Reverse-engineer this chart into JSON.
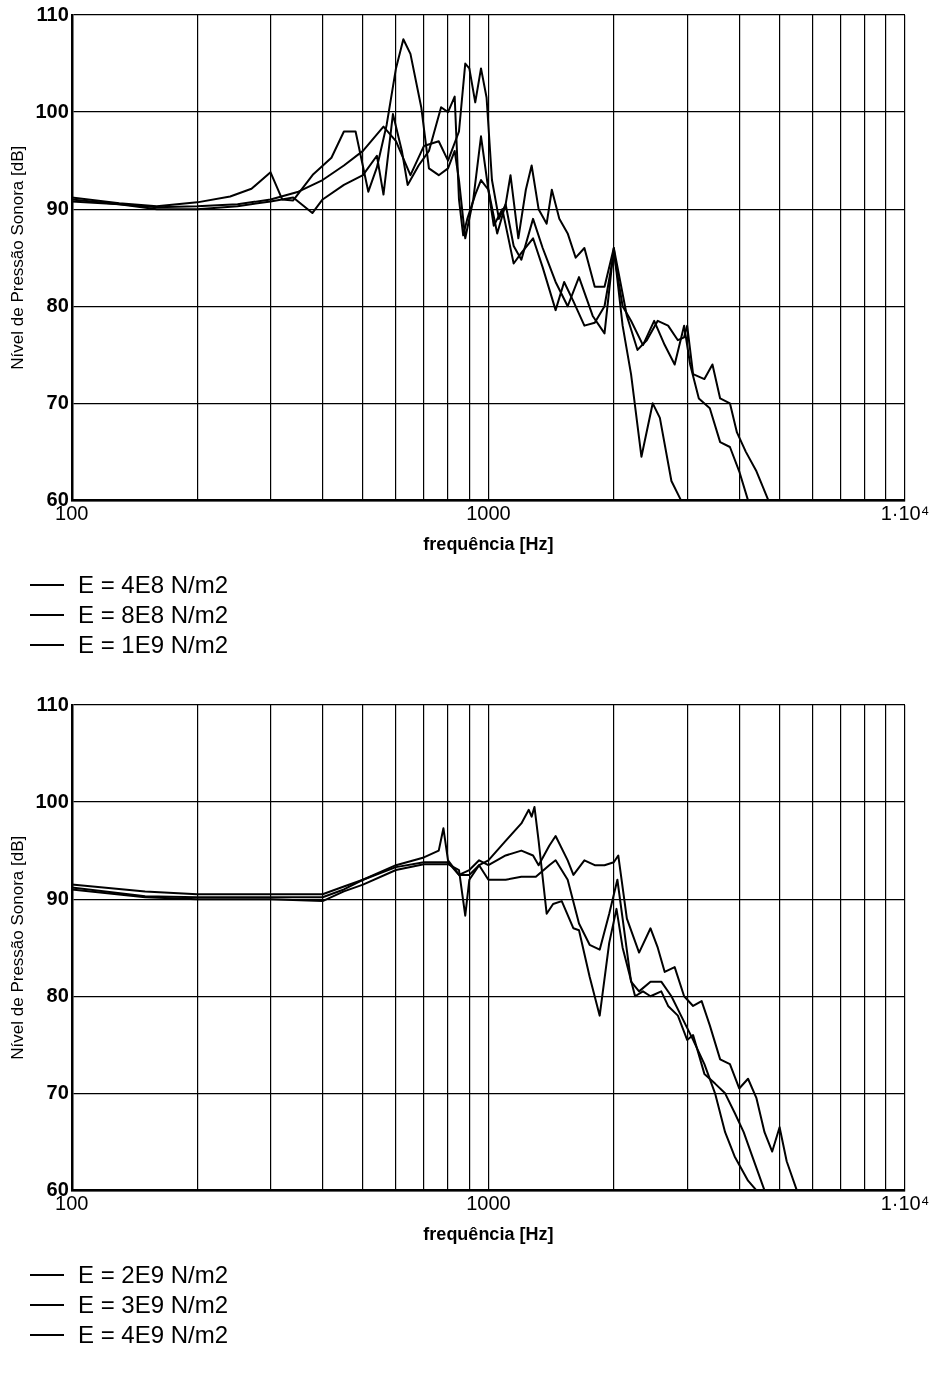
{
  "chart_data": [
    {
      "type": "line",
      "xlabel": "frequência [Hz]",
      "ylabel": "Nível de Pressão Sonora [dB]",
      "log": "x",
      "grid": true,
      "legend": "bottom left",
      "marker": "none",
      "line_style": "solid",
      "xlim": [
        100,
        10000
      ],
      "xticks": [
        {
          "value": 100,
          "label": "100"
        },
        {
          "value": 200,
          "label": null
        },
        {
          "value": 300,
          "label": null
        },
        {
          "value": 400,
          "label": null
        },
        {
          "value": 500,
          "label": null
        },
        {
          "value": 600,
          "label": null
        },
        {
          "value": 700,
          "label": null
        },
        {
          "value": 800,
          "label": null
        },
        {
          "value": 900,
          "label": null
        },
        {
          "value": 1000,
          "label": "1000"
        },
        {
          "value": 2000,
          "label": null
        },
        {
          "value": 3000,
          "label": null
        },
        {
          "value": 4000,
          "label": null
        },
        {
          "value": 5000,
          "label": null
        },
        {
          "value": 6000,
          "label": null
        },
        {
          "value": 7000,
          "label": null
        },
        {
          "value": 8000,
          "label": null
        },
        {
          "value": 9000,
          "label": null
        },
        {
          "value": 10000,
          "label": "1·10⁴"
        }
      ],
      "ylim": [
        60,
        110
      ],
      "yticks": [
        60,
        70,
        80,
        90,
        100,
        110
      ],
      "series": [
        {
          "name": "E = 4E8 N/m2",
          "color": "#000000",
          "x": [
            100,
            130,
            160,
            200,
            240,
            270,
            300,
            320,
            340,
            380,
            420,
            450,
            480,
            515,
            540,
            570,
            600,
            625,
            650,
            690,
            720,
            760,
            800,
            830,
            850,
            880,
            920,
            960,
            1000,
            1050,
            1100,
            1150,
            1200,
            1280,
            1350,
            1450,
            1550,
            1650,
            1780,
            1900,
            2000,
            2100,
            2200,
            2330,
            2480,
            2580,
            2750,
            2900
          ],
          "values": [
            91.2,
            90.6,
            90.3,
            90.7,
            91.3,
            92.1,
            93.8,
            91,
            90.9,
            93.6,
            95.3,
            98,
            98,
            91.8,
            94.3,
            98.7,
            104.5,
            107.5,
            106,
            100.5,
            94.2,
            93.5,
            94.2,
            96,
            93,
            87,
            91,
            97.5,
            92,
            87.5,
            90.5,
            86.2,
            84.8,
            89,
            86,
            82.5,
            80,
            83,
            79,
            77.2,
            86,
            78,
            73,
            64.5,
            70,
            68.5,
            62,
            60
          ]
        },
        {
          "name": "E = 8E8 N/m2",
          "color": "#000000",
          "x": [
            100,
            130,
            160,
            200,
            250,
            300,
            340,
            378,
            400,
            450,
            500,
            540,
            560,
            590,
            620,
            640,
            680,
            720,
            770,
            800,
            830,
            850,
            870,
            890,
            930,
            960,
            1000,
            1030,
            1080,
            1150,
            1200,
            1280,
            1350,
            1450,
            1520,
            1600,
            1700,
            1800,
            1900,
            2000,
            2100,
            2200,
            2350,
            2500,
            2650,
            2800,
            2950,
            3050,
            3200,
            3400,
            3600,
            3800,
            4000,
            4200
          ],
          "values": [
            90.8,
            90.5,
            90,
            90,
            90.3,
            90.8,
            91.2,
            89.6,
            91,
            92.5,
            93.5,
            95.5,
            91.5,
            99.8,
            96,
            92.5,
            94.5,
            96,
            100.5,
            100,
            101.6,
            91,
            87.3,
            89,
            91.5,
            93,
            92,
            88.3,
            90,
            84.4,
            85.5,
            87,
            84,
            79.6,
            82.5,
            80.5,
            78,
            78.3,
            80,
            85.5,
            80,
            78.5,
            76,
            78.5,
            76,
            74,
            78,
            74,
            70.5,
            69.5,
            66,
            65.5,
            63,
            60
          ]
        },
        {
          "name": "E = 1E9 N/m2",
          "color": "#000000",
          "x": [
            100,
            130,
            160,
            200,
            250,
            300,
            350,
            400,
            450,
            500,
            560,
            600,
            650,
            700,
            760,
            800,
            850,
            880,
            900,
            930,
            960,
            990,
            1020,
            1060,
            1100,
            1130,
            1180,
            1230,
            1270,
            1320,
            1380,
            1420,
            1480,
            1550,
            1620,
            1700,
            1800,
            1900,
            2000,
            2150,
            2280,
            2400,
            2550,
            2700,
            2850,
            2950,
            3000,
            3100,
            3300,
            3450,
            3600,
            3800,
            3950,
            4150,
            4400,
            4700
          ],
          "values": [
            91,
            90.5,
            90.2,
            90.3,
            90.5,
            91,
            91.8,
            93,
            94.5,
            96,
            98.5,
            97,
            93.5,
            96.5,
            97,
            95,
            98,
            105,
            104.5,
            101,
            104.5,
            101.5,
            93,
            89,
            90.5,
            93.5,
            87,
            92,
            94.5,
            90,
            88.5,
            92,
            89,
            87.5,
            85,
            86,
            82,
            82,
            86,
            79,
            75.5,
            76.5,
            78.5,
            78,
            76.5,
            76.8,
            78,
            73,
            72.5,
            74,
            70.5,
            70,
            67,
            65,
            63,
            60
          ]
        }
      ]
    },
    {
      "type": "line",
      "xlabel": "frequência [Hz]",
      "ylabel": "Nível de Pressão Sonora [dB]",
      "log": "x",
      "grid": true,
      "legend": "bottom left",
      "marker": "none",
      "line_style": "solid",
      "xlim": [
        100,
        10000
      ],
      "xticks": [
        {
          "value": 100,
          "label": "100"
        },
        {
          "value": 200,
          "label": null
        },
        {
          "value": 300,
          "label": null
        },
        {
          "value": 400,
          "label": null
        },
        {
          "value": 500,
          "label": null
        },
        {
          "value": 600,
          "label": null
        },
        {
          "value": 700,
          "label": null
        },
        {
          "value": 800,
          "label": null
        },
        {
          "value": 900,
          "label": null
        },
        {
          "value": 1000,
          "label": "1000"
        },
        {
          "value": 2000,
          "label": null
        },
        {
          "value": 3000,
          "label": null
        },
        {
          "value": 4000,
          "label": null
        },
        {
          "value": 5000,
          "label": null
        },
        {
          "value": 6000,
          "label": null
        },
        {
          "value": 7000,
          "label": null
        },
        {
          "value": 8000,
          "label": null
        },
        {
          "value": 9000,
          "label": null
        },
        {
          "value": 10000,
          "label": "1·10⁴"
        }
      ],
      "ylim": [
        60,
        110
      ],
      "yticks": [
        60,
        70,
        80,
        90,
        100,
        110
      ],
      "series": [
        {
          "name": "E = 2E9 N/m2",
          "color": "#000000",
          "x": [
            100,
            150,
            200,
            300,
            400,
            450,
            500,
            600,
            700,
            760,
            780,
            800,
            850,
            900,
            950,
            1000,
            1100,
            1200,
            1250,
            1270,
            1290,
            1320,
            1380,
            1430,
            1500,
            1600,
            1650,
            1750,
            1850,
            1950,
            2030,
            2100,
            2250,
            2350,
            2450,
            2600,
            2700,
            2850,
            3000,
            3100,
            3300,
            3500,
            3700,
            3900,
            4100,
            4300,
            4600
          ],
          "values": [
            91.5,
            90.8,
            90.5,
            90.5,
            90.5,
            91.3,
            92,
            93.5,
            94.3,
            95,
            97.3,
            94,
            92.5,
            92.5,
            93.5,
            94,
            96,
            97.8,
            99.2,
            98.5,
            99.5,
            96,
            88.5,
            89.5,
            89.8,
            87,
            86.8,
            82,
            78,
            85.5,
            89,
            85,
            80,
            80.5,
            80,
            80.5,
            79,
            78,
            75.5,
            76,
            72,
            71,
            70,
            68,
            66,
            63.5,
            60
          ]
        },
        {
          "name": "E = 3E9 N/m2",
          "color": "#000000",
          "x": [
            100,
            150,
            200,
            300,
            400,
            450,
            500,
            600,
            700,
            800,
            850,
            880,
            900,
            950,
            1000,
            1100,
            1200,
            1300,
            1400,
            1450,
            1550,
            1650,
            1750,
            1850,
            1950,
            2040,
            2100,
            2200,
            2300,
            2450,
            2600,
            2750,
            2900,
            3100,
            3300,
            3500,
            3700,
            3900,
            4200,
            4400
          ],
          "values": [
            91,
            90.2,
            90,
            90,
            89.8,
            90.8,
            91.5,
            93,
            93.6,
            93.6,
            93,
            88.3,
            92,
            93.5,
            92,
            92,
            92.3,
            92.3,
            93.5,
            94,
            92,
            87.5,
            85.3,
            84.8,
            88.5,
            92,
            88,
            81.5,
            80.5,
            81.5,
            81.5,
            80,
            78,
            75.5,
            73,
            70,
            66,
            63.5,
            61,
            60
          ]
        },
        {
          "name": "E = 4E9 N/m2",
          "color": "#000000",
          "x": [
            100,
            150,
            200,
            300,
            400,
            450,
            500,
            600,
            700,
            800,
            850,
            900,
            950,
            1000,
            1100,
            1200,
            1280,
            1320,
            1400,
            1450,
            1550,
            1600,
            1700,
            1800,
            1900,
            2000,
            2050,
            2150,
            2300,
            2450,
            2550,
            2650,
            2800,
            2950,
            3100,
            3250,
            3400,
            3600,
            3800,
            4000,
            4200,
            4400,
            4600,
            4800,
            5000,
            5200,
            5500
          ],
          "values": [
            91.2,
            90.3,
            90.2,
            90.2,
            90.2,
            91,
            92,
            93.3,
            93.8,
            93.8,
            92.5,
            93,
            94,
            93.5,
            94.5,
            95,
            94.5,
            93.5,
            95.5,
            96.5,
            94,
            92.5,
            94,
            93.5,
            93.5,
            93.8,
            94.5,
            88,
            84.5,
            87,
            85,
            82.5,
            83,
            80,
            79,
            79.5,
            77,
            73.5,
            73,
            70.5,
            71.5,
            69.5,
            66,
            64,
            66.5,
            63,
            60
          ]
        }
      ]
    }
  ]
}
